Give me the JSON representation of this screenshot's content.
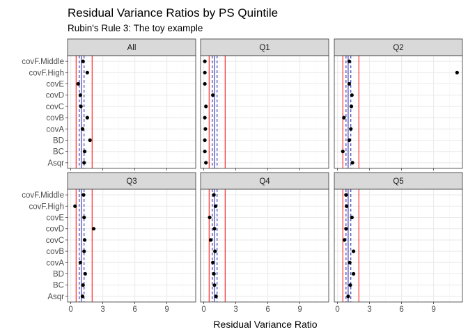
{
  "chart_data": {
    "type": "scatter",
    "title": "Residual Variance Ratios by PS Quintile",
    "subtitle": "Rubin's Rule 3: The toy example",
    "xlabel": "Residual Variance Ratio",
    "ylabel": "",
    "xlim": [
      -0.3,
      11.7
    ],
    "xticks": [
      0,
      3,
      6,
      9
    ],
    "grid": true,
    "legend": "none",
    "categories": [
      "covF.Middle",
      "covF.High",
      "covE",
      "covD",
      "covC",
      "covB",
      "covA",
      "BD",
      "BC",
      "Asqr"
    ],
    "reference_lines": {
      "red": {
        "values": [
          0.5,
          2.0
        ],
        "color": "#ff0000"
      },
      "blue_solid": {
        "values": [
          1.0
        ],
        "color": "#1a1aa8"
      },
      "blue_dashed": {
        "values": [
          0.8,
          1.25
        ],
        "color": "#1a1aa8"
      }
    },
    "panels": [
      {
        "label": "All",
        "values": [
          1.15,
          1.55,
          0.7,
          0.9,
          0.95,
          1.55,
          1.1,
          1.8,
          1.3,
          1.25
        ]
      },
      {
        "label": "Q1",
        "values": [
          0.1,
          0.1,
          0.1,
          0.85,
          0.2,
          0.1,
          0.15,
          0.1,
          0.1,
          0.2
        ]
      },
      {
        "label": "Q2",
        "values": [
          1.1,
          11.2,
          1.1,
          1.35,
          1.3,
          0.6,
          1.25,
          1.1,
          0.5,
          1.4
        ]
      },
      {
        "label": "Q3",
        "values": [
          1.2,
          0.4,
          1.25,
          2.15,
          1.3,
          1.25,
          0.9,
          1.35,
          1.15,
          1.1
        ]
      },
      {
        "label": "Q4",
        "values": [
          0.95,
          1.1,
          0.55,
          1.0,
          0.65,
          1.05,
          0.85,
          0.95,
          1.0,
          1.15
        ]
      },
      {
        "label": "Q5",
        "values": [
          0.8,
          0.85,
          1.35,
          0.8,
          0.65,
          1.5,
          1.15,
          1.5,
          1.2,
          1.0
        ]
      }
    ]
  },
  "colors": {
    "point": "#000000",
    "strip_fill": "#d9d9d9",
    "panel_border": "#333333",
    "grid_major": "#ebebeb",
    "grid_minor": "#f5f5f5"
  }
}
